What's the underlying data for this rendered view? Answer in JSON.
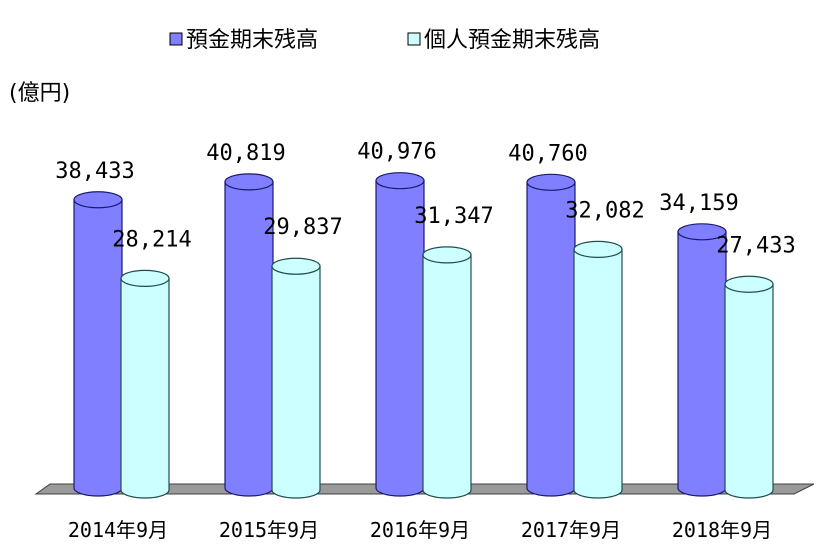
{
  "chart_data": {
    "type": "bar",
    "style": "3d-cylinder",
    "unit_label": "(億円)",
    "categories": [
      "2014年9月",
      "2015年9月",
      "2016年9月",
      "2017年9月",
      "2018年9月"
    ],
    "series": [
      {
        "name": "預金期末残高",
        "values": [
          38433,
          40819,
          40976,
          40760,
          34159
        ],
        "labels": [
          "38,433",
          "40,819",
          "40,976",
          "40,760",
          "34,159"
        ],
        "color": "#7f7fff"
      },
      {
        "name": "個人預金期末残高",
        "values": [
          28214,
          29837,
          31347,
          32082,
          27433
        ],
        "labels": [
          "28,214",
          "29,837",
          "31,347",
          "32,082",
          "27,433"
        ],
        "color": "#ccffff"
      }
    ],
    "legend_position": "top",
    "grid": false
  }
}
